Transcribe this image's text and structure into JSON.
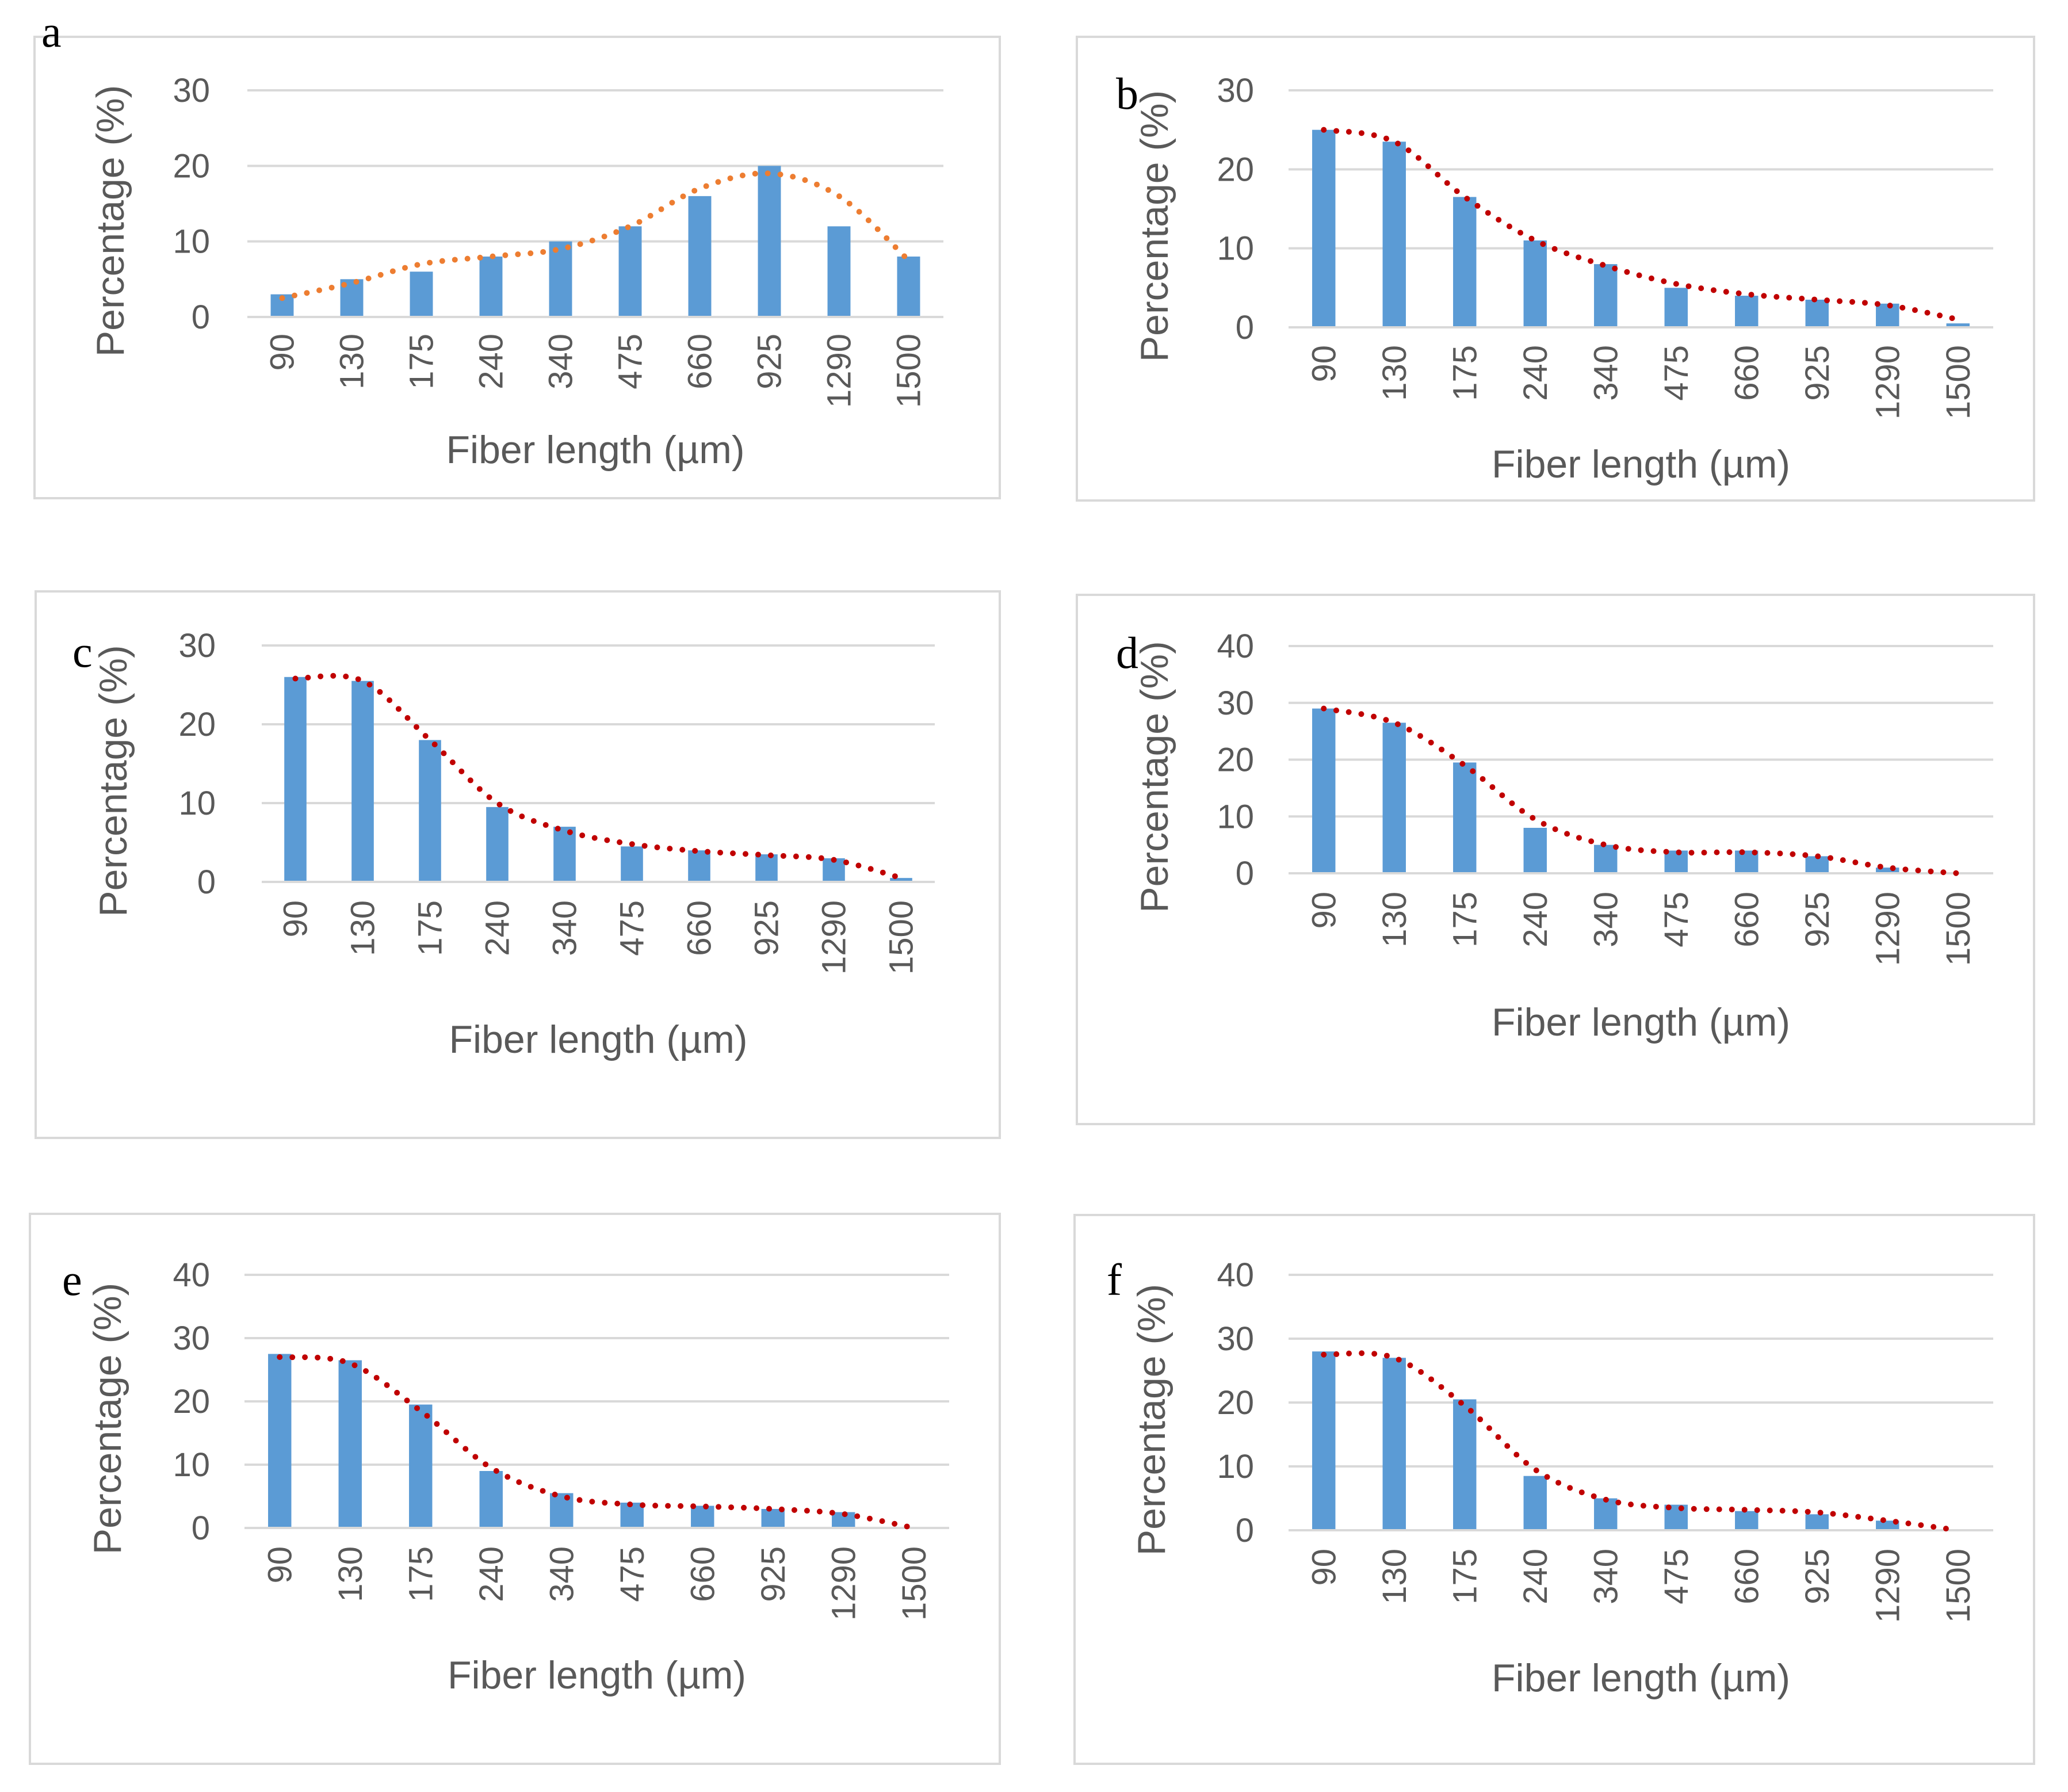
{
  "figure": {
    "background": "#ffffff",
    "bar_color": "#5b9bd5",
    "grid_color": "#d9d9d9",
    "text_color": "#595959",
    "trend_colors": {
      "orange": "#ed7d31",
      "red": "#c00000"
    }
  },
  "chart_data": [
    {
      "id": "a",
      "letter": "a",
      "type": "bar",
      "xlabel": "Fiber length (µm)",
      "ylabel": "Percentage (%)",
      "categories": [
        "90",
        "130",
        "175",
        "240",
        "340",
        "475",
        "660",
        "925",
        "1290",
        "1500"
      ],
      "series": [
        {
          "name": "Percentage",
          "values": [
            3,
            5,
            6,
            8,
            10,
            12,
            16,
            20,
            12,
            8
          ]
        }
      ],
      "ylim": [
        0,
        30
      ],
      "yticks": [
        0,
        10,
        20,
        30
      ],
      "trend": {
        "style": "dotted",
        "color": "orange",
        "values": [
          2.5,
          4.5,
          7,
          8,
          9,
          12,
          17,
          19,
          16,
          7.5
        ]
      }
    },
    {
      "id": "b",
      "letter": "b",
      "type": "bar",
      "xlabel": "Fiber length (µm)",
      "ylabel": "Percentage (%)",
      "categories": [
        "90",
        "130",
        "175",
        "240",
        "340",
        "475",
        "660",
        "925",
        "1290",
        "1500"
      ],
      "series": [
        {
          "name": "Percentage",
          "values": [
            25,
            23.5,
            16.5,
            11,
            8,
            5,
            4,
            3.5,
            3,
            0.5
          ]
        }
      ],
      "ylim": [
        0,
        30
      ],
      "yticks": [
        0,
        10,
        20,
        30
      ],
      "trend": {
        "style": "dotted",
        "color": "red",
        "values": [
          25,
          23.5,
          16.5,
          11,
          7.8,
          5.5,
          4.2,
          3.5,
          2.8,
          1
        ]
      }
    },
    {
      "id": "c",
      "letter": "c",
      "type": "bar",
      "xlabel": "Fiber length (µm)",
      "ylabel": "Percentage (%)",
      "categories": [
        "90",
        "130",
        "175",
        "240",
        "340",
        "475",
        "660",
        "925",
        "1290",
        "1500"
      ],
      "series": [
        {
          "name": "Percentage",
          "values": [
            26,
            25.5,
            18,
            9.5,
            7,
            4.5,
            4,
            3.5,
            3,
            0.5
          ]
        }
      ],
      "ylim": [
        0,
        30
      ],
      "yticks": [
        0,
        10,
        20,
        30
      ],
      "trend": {
        "style": "dotted",
        "color": "red",
        "values": [
          25.8,
          25.5,
          18,
          10,
          6.5,
          4.8,
          3.9,
          3.4,
          2.8,
          0.5
        ]
      }
    },
    {
      "id": "d",
      "letter": "d",
      "type": "bar",
      "xlabel": "Fiber length (µm)",
      "ylabel": "Percentage (%)",
      "categories": [
        "90",
        "130",
        "175",
        "240",
        "340",
        "475",
        "660",
        "925",
        "1290",
        "1500"
      ],
      "series": [
        {
          "name": "Percentage",
          "values": [
            29,
            26.5,
            19.5,
            8,
            5,
            4,
            4,
            3,
            1,
            0
          ]
        }
      ],
      "ylim": [
        0,
        40
      ],
      "yticks": [
        0,
        10,
        20,
        30,
        40
      ],
      "trend": {
        "style": "dotted",
        "color": "red",
        "values": [
          29,
          26.5,
          19,
          9.5,
          5,
          3.7,
          3.7,
          3,
          1,
          0
        ]
      }
    },
    {
      "id": "e",
      "letter": "e",
      "type": "bar",
      "xlabel": "Fiber length (µm)",
      "ylabel": "Percentage (%)",
      "categories": [
        "90",
        "130",
        "175",
        "240",
        "340",
        "475",
        "660",
        "925",
        "1290",
        "1500"
      ],
      "series": [
        {
          "name": "Percentage",
          "values": [
            27.5,
            26.5,
            19.5,
            9,
            5.5,
            4,
            3.5,
            3,
            2.5,
            0
          ]
        }
      ],
      "ylim": [
        0,
        40
      ],
      "yticks": [
        0,
        10,
        20,
        30,
        40
      ],
      "trend": {
        "style": "dotted",
        "color": "red",
        "values": [
          27,
          26,
          18.5,
          9.5,
          5,
          3.7,
          3.4,
          3,
          2.2,
          0
        ]
      }
    },
    {
      "id": "f",
      "letter": "f",
      "type": "bar",
      "xlabel": "Fiber length (µm)",
      "ylabel": "Percentage (%)",
      "categories": [
        "90",
        "130",
        "175",
        "240",
        "340",
        "475",
        "660",
        "925",
        "1290",
        "1500"
      ],
      "series": [
        {
          "name": "Percentage",
          "values": [
            28,
            27,
            20.5,
            8.5,
            5,
            4,
            3,
            2.5,
            1.5,
            0
          ]
        }
      ],
      "ylim": [
        0,
        40
      ],
      "yticks": [
        0,
        10,
        20,
        30,
        40
      ],
      "trend": {
        "style": "dotted",
        "color": "red",
        "values": [
          27.5,
          27,
          19.5,
          9.5,
          4.8,
          3.5,
          3.2,
          2.8,
          1.5,
          0
        ]
      }
    }
  ]
}
